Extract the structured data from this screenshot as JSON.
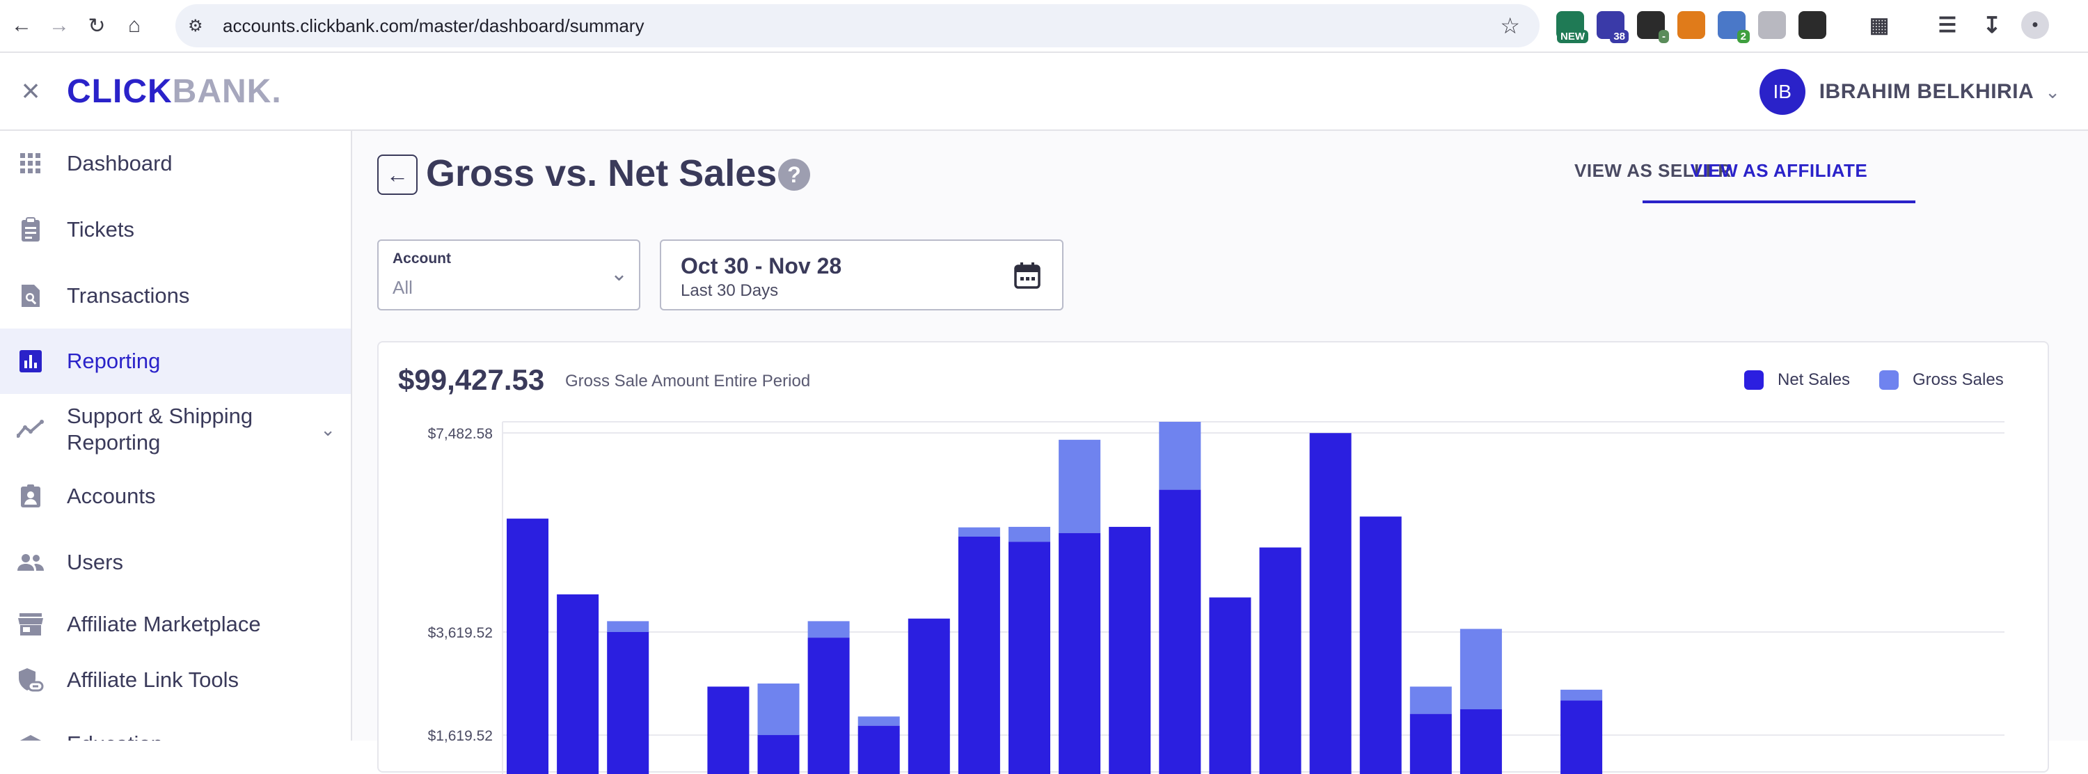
{
  "browser": {
    "url": "accounts.clickbank.com/master/dashboard/summary",
    "extensions": [
      {
        "name": "new-extension-icon",
        "badge": "NEW",
        "color": "#1f7a55",
        "badge_color": "#1f7a55"
      },
      {
        "name": "graduation-cap-extension-icon",
        "badge": "38",
        "color": "#3a3aa8",
        "badge_color": "#3a3aa8"
      },
      {
        "name": "pen-tool-extension-icon",
        "badge": "-",
        "color": "#2b2b2b",
        "badge_color": "#5a8c5a"
      },
      {
        "name": "fox-extension-icon",
        "badge": "",
        "color": "#e07b1a",
        "badge_color": ""
      },
      {
        "name": "code-extension-icon",
        "badge": "2",
        "color": "#4a78c8",
        "badge_color": "#3f9f3f"
      },
      {
        "name": "triangle-extension-icon",
        "badge": "",
        "color": "#b8b8c0",
        "badge_color": ""
      },
      {
        "name": "writing-extension-icon",
        "badge": "",
        "color": "#2b2b2b",
        "badge_color": ""
      }
    ]
  },
  "header": {
    "logo_click": "CLICK",
    "logo_bank": "BANK",
    "avatar_initials": "IB",
    "user_name": "IBRAHIM BELKHIRIA"
  },
  "sidebar": {
    "items": [
      {
        "label": "Dashboard",
        "icon": "grid-icon"
      },
      {
        "label": "Tickets",
        "icon": "clipboard-icon"
      },
      {
        "label": "Transactions",
        "icon": "document-search-icon"
      },
      {
        "label": "Reporting",
        "icon": "bar-chart-icon",
        "active": true
      },
      {
        "label": "Support & Shipping",
        "label2": "Reporting",
        "icon": "trend-line-icon"
      },
      {
        "label": "Accounts",
        "icon": "id-card-icon"
      },
      {
        "label": "Users",
        "icon": "people-icon"
      },
      {
        "label": "Affiliate Marketplace",
        "icon": "storefront-icon"
      },
      {
        "label": "Affiliate Link Tools",
        "icon": "shield-link-icon"
      },
      {
        "label": "Education",
        "icon": "education-icon"
      }
    ]
  },
  "page": {
    "title": "Gross vs. Net Sales",
    "tab_seller": "VIEW AS SELLER",
    "tab_affiliate": "VIEW AS AFFILIATE",
    "account_label": "Account",
    "account_value": "All",
    "date_range": "Oct 30 - Nov 28",
    "date_sub": "Last 30 Days"
  },
  "summary": {
    "gross_total": "$99,427.53",
    "gross_caption": "Gross Sale Amount Entire Period"
  },
  "colors": {
    "net": "#2b1fe0",
    "gross": "#6f83ef",
    "accent": "#2a22c9"
  },
  "chart_data": {
    "type": "bar",
    "stacked": true,
    "legend": [
      "Net Sales",
      "Gross Sales"
    ],
    "legend_position": "top-right",
    "y_ticks": [
      "$7,482.58",
      "$3,619.52",
      "$1,619.52"
    ],
    "y_tick_values": [
      7482.58,
      3619.52,
      1619.52
    ],
    "grid": true,
    "series": [
      {
        "name": "Net Sales",
        "values": [
          5820,
          4350,
          3620,
          null,
          2560,
          1620,
          3510,
          1800,
          3880,
          5470,
          5370,
          5540,
          5660,
          6380,
          4290,
          5260,
          7480,
          5860,
          2030,
          2120,
          null,
          2290
        ]
      },
      {
        "name": "Gross Sales",
        "values": [
          5820,
          4350,
          3830,
          null,
          2560,
          2620,
          3830,
          1980,
          3880,
          5650,
          5660,
          7350,
          5660,
          7720,
          4290,
          5260,
          7480,
          5860,
          2560,
          3680,
          null,
          2500
        ]
      }
    ]
  }
}
